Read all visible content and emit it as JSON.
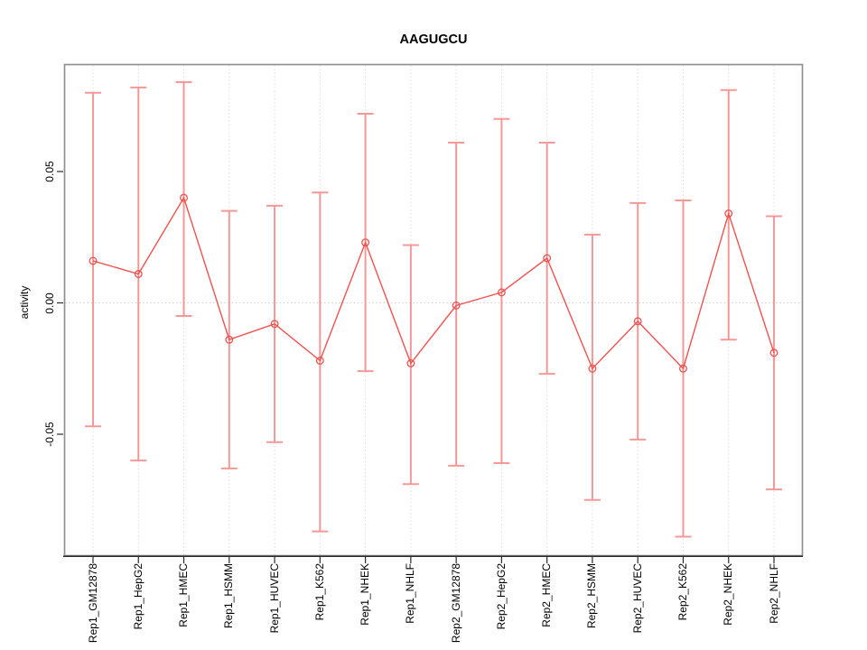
{
  "title": "AAGUGCU",
  "chart_data": {
    "type": "line",
    "title": "AAGUGCU",
    "xlabel": "",
    "ylabel": "activity",
    "categories": [
      "Rep1_GM12878",
      "Rep1_HepG2",
      "Rep1_HMEC",
      "Rep1_HSMM",
      "Rep1_HUVEC",
      "Rep1_K562",
      "Rep1_NHEK",
      "Rep1_NHLF",
      "Rep2_GM12878",
      "Rep2_HepG2",
      "Rep2_HMEC",
      "Rep2_HSMM",
      "Rep2_HUVEC",
      "Rep2_K562",
      "Rep2_NHEK",
      "Rep2_NHLF"
    ],
    "series": [
      {
        "name": "activity",
        "values": [
          0.016,
          0.011,
          0.04,
          -0.014,
          -0.008,
          -0.022,
          0.023,
          -0.023,
          -0.001,
          0.004,
          0.017,
          -0.025,
          -0.007,
          -0.025,
          0.034,
          -0.019
        ],
        "error_high": [
          0.08,
          0.082,
          0.084,
          0.035,
          0.037,
          0.042,
          0.072,
          0.022,
          0.061,
          0.07,
          0.061,
          0.026,
          0.038,
          0.039,
          0.081,
          0.033
        ],
        "error_low": [
          -0.047,
          -0.06,
          -0.005,
          -0.063,
          -0.053,
          -0.087,
          -0.026,
          -0.069,
          -0.062,
          -0.061,
          -0.027,
          -0.075,
          -0.052,
          -0.089,
          -0.014,
          -0.071
        ]
      }
    ],
    "ylim": [
      -0.095,
      0.09
    ],
    "yticks": [
      0.05,
      0.0,
      -0.05
    ],
    "ytick_labels": [
      "0.05",
      "0.00",
      "-0.05"
    ],
    "zero_line": true,
    "grid": "vertical-dotted",
    "legend": "none",
    "marker": "open-circle",
    "colors": {
      "point": "#e9534f",
      "line": "#ef5350",
      "error_bar": "#f59898",
      "grid": "#dcdcdc",
      "zero_line": "#cfcfcf",
      "frame": "#919191",
      "axis": "#2b2b2b",
      "text": "#000000"
    }
  }
}
